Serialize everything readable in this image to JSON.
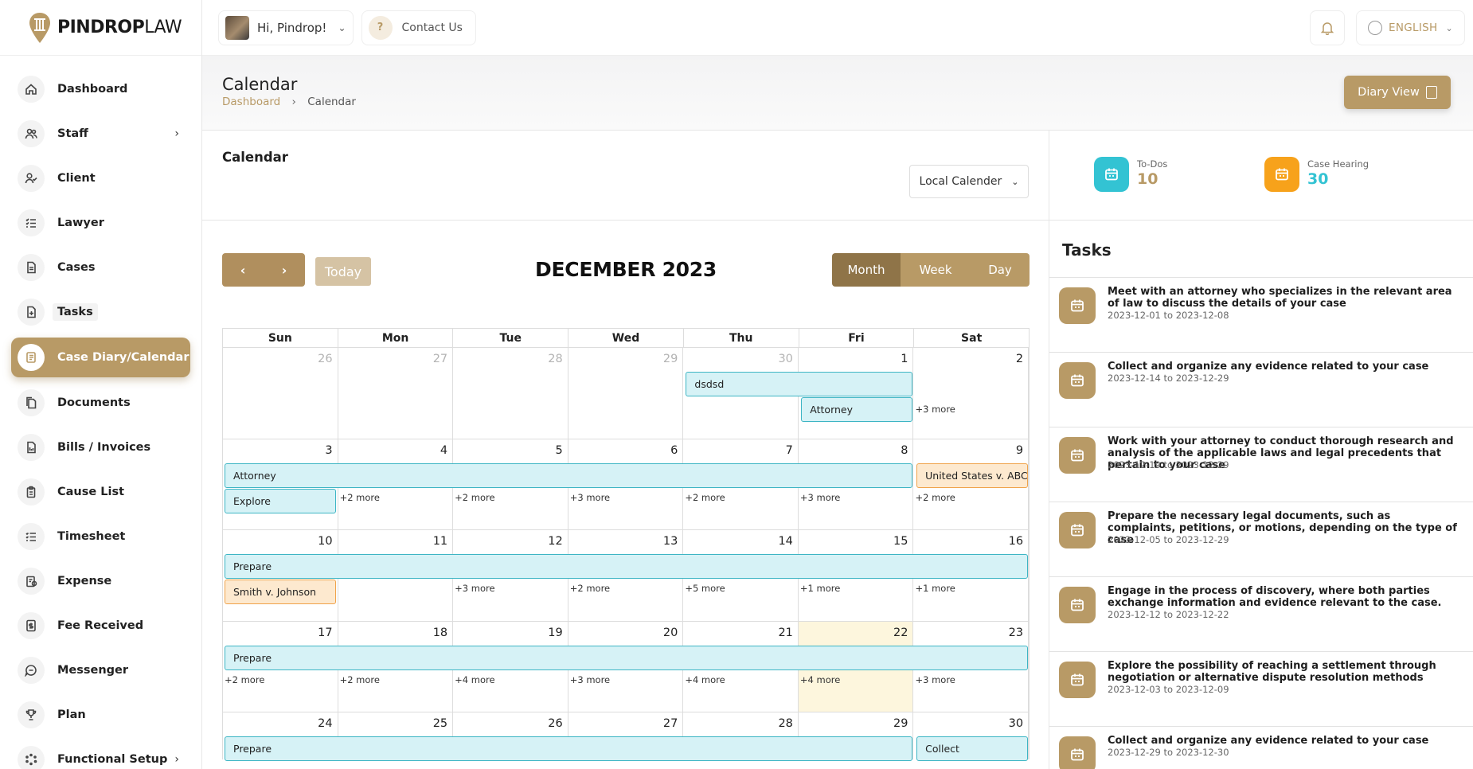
{
  "brand": {
    "bold": "PINDROP",
    "light": "LAW"
  },
  "sidebar": {
    "items": [
      {
        "label": "Dashboard",
        "icon": "home-icon"
      },
      {
        "label": "Staff",
        "icon": "users-icon",
        "chevron": true
      },
      {
        "label": "Client",
        "icon": "user-check-icon"
      },
      {
        "label": "Lawyer",
        "icon": "list-check-icon"
      },
      {
        "label": "Cases",
        "icon": "file-icon"
      },
      {
        "label": "Tasks",
        "icon": "file-plus-icon"
      },
      {
        "label": "Case Diary/Calendar",
        "icon": "diary-icon",
        "active": true
      },
      {
        "label": "Documents",
        "icon": "documents-icon"
      },
      {
        "label": "Bills / Invoices",
        "icon": "invoice-icon"
      },
      {
        "label": "Cause List",
        "icon": "clipboard-icon"
      },
      {
        "label": "Timesheet",
        "icon": "timesheet-icon"
      },
      {
        "label": "Expense",
        "icon": "expense-icon"
      },
      {
        "label": "Fee Received",
        "icon": "fee-icon"
      },
      {
        "label": "Messenger",
        "icon": "chat-icon"
      },
      {
        "label": "Plan",
        "icon": "trophy-icon"
      },
      {
        "label": "Functional Setup",
        "icon": "settings-icon",
        "chevron": true
      }
    ]
  },
  "topbar": {
    "greeting": "Hi, Pindrop!",
    "contact": "Contact Us",
    "language": "ENGLISH"
  },
  "page": {
    "title": "Calendar",
    "breadcrumb_home": "Dashboard",
    "breadcrumb_current": "Calendar",
    "diary_button": "Diary View"
  },
  "calendar": {
    "panel_title": "Calendar",
    "source_select": "Local Calender",
    "today_button": "Today",
    "month_title": "DECEMBER 2023",
    "views": [
      "Month",
      "Week",
      "Day"
    ],
    "active_view": "Month",
    "weekdays": [
      "Sun",
      "Mon",
      "Tue",
      "Wed",
      "Thu",
      "Fri",
      "Sat"
    ],
    "weeks": [
      {
        "days": [
          "26",
          "27",
          "28",
          "29",
          "30",
          "1",
          "2"
        ],
        "muted": [
          0,
          1,
          2,
          3,
          4
        ],
        "events": [
          {
            "label": "dsdsd",
            "start": 4,
            "span": 2,
            "row": 0,
            "color": "teal"
          },
          {
            "label": "Attorney",
            "start": 5,
            "span": 1,
            "row": 1,
            "color": "teal"
          }
        ],
        "more": [
          null,
          null,
          null,
          null,
          null,
          null,
          "+3 more"
        ]
      },
      {
        "days": [
          "3",
          "4",
          "5",
          "6",
          "7",
          "8",
          "9"
        ],
        "muted": [],
        "events": [
          {
            "label": "Attorney",
            "start": 0,
            "span": 6,
            "row": 0,
            "color": "teal"
          },
          {
            "label": "United States v. ABC",
            "start": 6,
            "span": 1,
            "row": 0,
            "color": "orange"
          },
          {
            "label": "Explore",
            "start": 0,
            "span": 1,
            "row": 1,
            "color": "teal"
          }
        ],
        "more": [
          null,
          "+2 more",
          "+2 more",
          "+3 more",
          "+2 more",
          "+3 more",
          "+2 more"
        ]
      },
      {
        "days": [
          "10",
          "11",
          "12",
          "13",
          "14",
          "15",
          "16"
        ],
        "muted": [],
        "events": [
          {
            "label": "Prepare",
            "start": 0,
            "span": 7,
            "row": 0,
            "color": "teal"
          },
          {
            "label": "Smith v. Johnson",
            "start": 0,
            "span": 1,
            "row": 1,
            "color": "orange"
          }
        ],
        "more": [
          null,
          null,
          "+3 more",
          "+2 more",
          "+5 more",
          "+1 more",
          "+1 more"
        ]
      },
      {
        "days": [
          "17",
          "18",
          "19",
          "20",
          "21",
          "22",
          "23"
        ],
        "muted": [],
        "today": 5,
        "events": [
          {
            "label": "Prepare",
            "start": 0,
            "span": 7,
            "row": 0,
            "color": "teal"
          }
        ],
        "more": [
          "+2 more",
          "+2 more",
          "+4 more",
          "+3 more",
          "+4 more",
          "+4 more",
          "+3 more"
        ]
      },
      {
        "days": [
          "24",
          "25",
          "26",
          "27",
          "28",
          "29",
          "30"
        ],
        "muted": [],
        "events": [
          {
            "label": "Prepare",
            "start": 0,
            "span": 6,
            "row": 0,
            "color": "teal"
          },
          {
            "label": "Collect",
            "start": 6,
            "span": 1,
            "row": 0,
            "color": "teal"
          }
        ],
        "more": [
          null,
          null,
          null,
          null,
          null,
          null,
          null
        ]
      }
    ]
  },
  "stats": [
    {
      "label": "To-Dos",
      "value": "10",
      "color": "#33c3d3",
      "value_color": "#b89a66"
    },
    {
      "label": "Case Hearing",
      "value": "30",
      "color": "#f7a21b",
      "value_color": "#33c3d3"
    }
  ],
  "tasks": {
    "title": "Tasks",
    "items": [
      {
        "title": "Meet with an attorney who specializes in the relevant area of law to discuss the details of your case",
        "date": "2023-12-01 to 2023-12-08"
      },
      {
        "title": "Collect and organize any evidence related to your case",
        "date": "2023-12-14 to 2023-12-29"
      },
      {
        "title": "Work with your attorney to conduct thorough research and analysis of the applicable laws and legal precedents that pertain to your case",
        "date": "2023-12-19 to 2023-12-29"
      },
      {
        "title": "Prepare the necessary legal documents, such as complaints, petitions, or motions, depending on the type of case",
        "date": "2023-12-05 to 2023-12-29"
      },
      {
        "title": "Engage in the process of discovery, where both parties exchange information and evidence relevant to the case.",
        "date": "2023-12-12 to 2023-12-22"
      },
      {
        "title": "Explore the possibility of reaching a settlement through negotiation or alternative dispute resolution methods",
        "date": "2023-12-03 to 2023-12-09"
      },
      {
        "title": "Collect and organize any evidence related to your case",
        "date": "2023-12-29 to 2023-12-30"
      }
    ]
  }
}
